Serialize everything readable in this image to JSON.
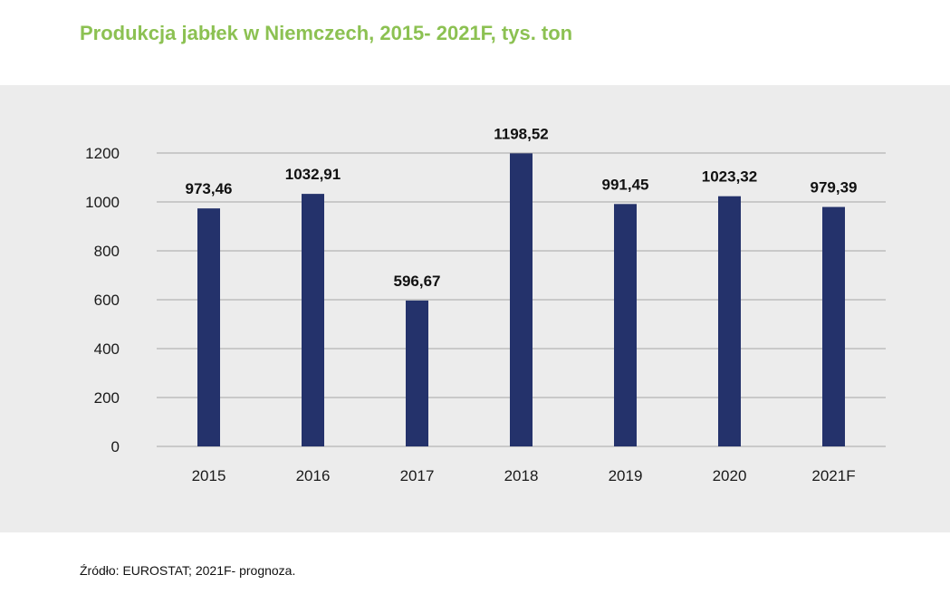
{
  "title": "Produkcja jabłek w Niemczech, 2015- 2021F, tys. ton",
  "source": "Źródło: EUROSTAT; 2021F- prognoza.",
  "colors": {
    "bar": "#24326b",
    "title": "#8cc152",
    "panel": "#ececec",
    "grid": "#a6a6a6"
  },
  "chart_data": {
    "type": "bar",
    "title": "Produkcja jabłek w Niemczech, 2015- 2021F, tys. ton",
    "categories": [
      "2015",
      "2016",
      "2017",
      "2018",
      "2019",
      "2020",
      "2021F"
    ],
    "values": [
      973.46,
      1032.91,
      596.67,
      1198.52,
      991.45,
      1023.32,
      979.39
    ],
    "value_labels": [
      "973,46",
      "1032,91",
      "596,67",
      "1198,52",
      "991,45",
      "1023,32",
      "979,39"
    ],
    "yticks": [
      0,
      200,
      400,
      600,
      800,
      1000,
      1200
    ],
    "ylim": [
      0,
      1200
    ],
    "grid": true,
    "legend": "none"
  }
}
